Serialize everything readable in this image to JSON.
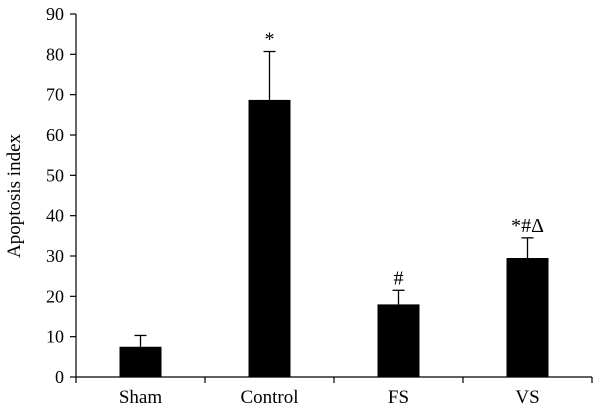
{
  "chart_data": {
    "type": "bar",
    "title": "",
    "xlabel": "",
    "ylabel": "Apoptosis index",
    "ylim": [
      0,
      90
    ],
    "yticks": [
      0,
      10,
      20,
      30,
      40,
      50,
      60,
      70,
      80,
      90
    ],
    "grid": false,
    "categories": [
      "Sham",
      "Control",
      "FS",
      "VS"
    ],
    "values": [
      7.5,
      68.7,
      18.0,
      29.5
    ],
    "errors": [
      2.8,
      12.0,
      3.5,
      5.0
    ],
    "annotations": [
      "",
      "*",
      "#",
      "*#Δ"
    ],
    "bar_color": "#000000"
  }
}
